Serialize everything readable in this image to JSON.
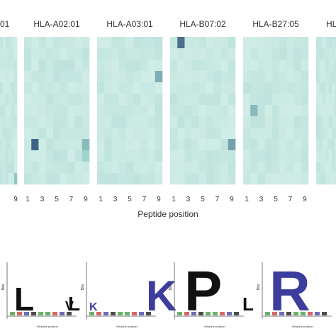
{
  "chart_data": [
    {
      "type": "heatmap",
      "panels": [
        {
          "title": "01",
          "ticks": [
            "9"
          ]
        },
        {
          "title": "HLA-A02:01",
          "ticks": [
            "1",
            "3",
            "5",
            "7",
            "9"
          ]
        },
        {
          "title": "HLA-A03:01",
          "ticks": [
            "1",
            "3",
            "5",
            "7",
            "9"
          ]
        },
        {
          "title": "HLA-B07:02",
          "ticks": [
            "1",
            "3",
            "5",
            "7",
            "9"
          ]
        },
        {
          "title": "HLA-B27:05",
          "ticks": [
            "1",
            "3",
            "5",
            "7",
            "9"
          ]
        },
        {
          "title": "HL",
          "ticks": []
        }
      ],
      "xlabel": "Peptide position",
      "colors": {
        "low": "#d7f0ea",
        "mid": "#9fd3cb",
        "high": "#34567e"
      },
      "highlights": [
        {
          "panel": 0,
          "col": 9,
          "row": 12,
          "value": 0.55
        },
        {
          "panel": 1,
          "col": 2,
          "row": 9,
          "value": 0.95
        },
        {
          "panel": 1,
          "col": 9,
          "row": 9,
          "value": 0.6
        },
        {
          "panel": 1,
          "col": 9,
          "row": 10,
          "value": 0.5
        },
        {
          "panel": 2,
          "col": 9,
          "row": 3,
          "value": 0.65
        },
        {
          "panel": 3,
          "col": 2,
          "row": 0,
          "value": 0.9
        },
        {
          "panel": 3,
          "col": 9,
          "row": 9,
          "value": 0.7
        },
        {
          "panel": 4,
          "col": 2,
          "row": 6,
          "value": 0.6
        }
      ]
    },
    {
      "type": "sequence-logo",
      "logos": [
        {
          "letters": [
            "L",
            "V",
            "L"
          ]
        },
        {
          "letters": [
            "K",
            "K"
          ]
        },
        {
          "letters": [
            "P",
            "L"
          ]
        },
        {
          "letters": [
            "R"
          ]
        }
      ],
      "ylabel": "Bits",
      "xlabel": "Residue position",
      "colors": {
        "hydrophobic": "#111111",
        "basic": "#3d3d9e",
        "acidic": "#cc3333",
        "polar": "#3a9a3a"
      }
    }
  ]
}
